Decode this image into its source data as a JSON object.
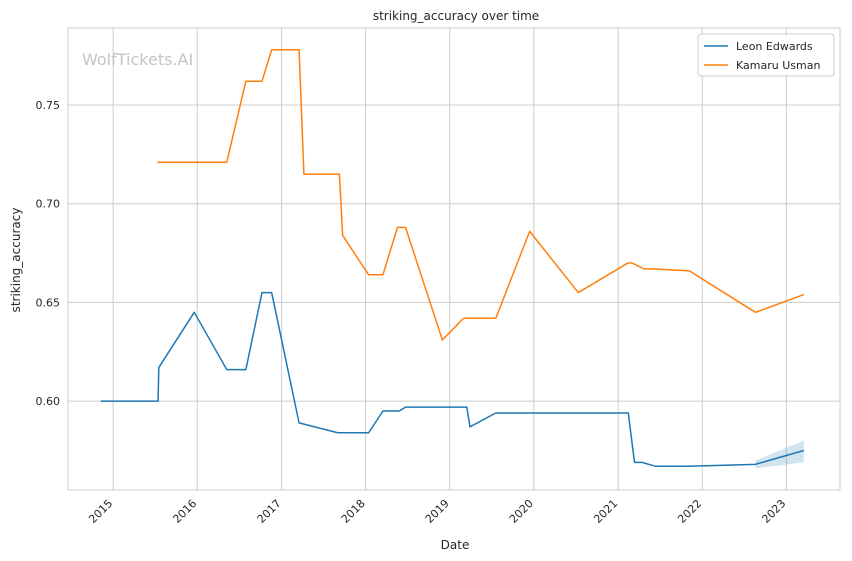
{
  "chart_data": {
    "type": "line",
    "title": "striking_accuracy over time",
    "xlabel": "Date",
    "ylabel": "striking_accuracy",
    "watermark": "WolfTickets.AI",
    "xlim": [
      "2014-06-19",
      "2023-08-22"
    ],
    "ylim": [
      0.555,
      0.789
    ],
    "x_ticks": [
      "2015-01-01",
      "2016-01-01",
      "2017-01-01",
      "2018-01-01",
      "2019-01-01",
      "2020-01-01",
      "2021-01-01",
      "2022-01-01",
      "2023-01-01"
    ],
    "x_tick_labels": [
      "2015",
      "2016",
      "2017",
      "2018",
      "2019",
      "2020",
      "2021",
      "2022",
      "2023"
    ],
    "y_ticks": [
      0.6,
      0.65,
      0.7,
      0.75
    ],
    "y_tick_labels": [
      "0.60",
      "0.65",
      "0.70",
      "0.75"
    ],
    "grid": true,
    "legend_position": "top-right",
    "series": [
      {
        "name": "Leon Edwards",
        "color": "#1f77b4",
        "points": [
          [
            "2014-11-08",
            0.6
          ],
          [
            "2015-07-15",
            0.6
          ],
          [
            "2015-07-18",
            0.617
          ],
          [
            "2015-12-19",
            0.645
          ],
          [
            "2016-05-08",
            0.616
          ],
          [
            "2016-07-30",
            0.616
          ],
          [
            "2016-10-08",
            0.655
          ],
          [
            "2016-11-19",
            0.655
          ],
          [
            "2017-03-18",
            0.589
          ],
          [
            "2017-09-02",
            0.584
          ],
          [
            "2018-01-14",
            0.584
          ],
          [
            "2018-03-17",
            0.595
          ],
          [
            "2018-05-27",
            0.595
          ],
          [
            "2018-06-23",
            0.597
          ],
          [
            "2019-03-16",
            0.597
          ],
          [
            "2019-03-30",
            0.587
          ],
          [
            "2019-07-20",
            0.594
          ],
          [
            "2021-02-14",
            0.594
          ],
          [
            "2021-03-13",
            0.569
          ],
          [
            "2021-04-15",
            0.569
          ],
          [
            "2021-06-12",
            0.567
          ],
          [
            "2021-11-01",
            0.567
          ],
          [
            "2022-08-20",
            0.568
          ],
          [
            "2023-03-18",
            0.575
          ]
        ],
        "band": [
          [
            "2022-08-20",
            0.566,
            0.57
          ],
          [
            "2023-03-18",
            0.569,
            0.58
          ]
        ]
      },
      {
        "name": "Kamaru Usman",
        "color": "#ff7f0e",
        "points": [
          [
            "2015-07-12",
            0.721
          ],
          [
            "2016-05-08",
            0.721
          ],
          [
            "2016-07-30",
            0.762
          ],
          [
            "2016-10-08",
            0.762
          ],
          [
            "2016-11-19",
            0.778
          ],
          [
            "2017-03-18",
            0.778
          ],
          [
            "2017-04-08",
            0.715
          ],
          [
            "2017-09-09",
            0.715
          ],
          [
            "2017-09-23",
            0.684
          ],
          [
            "2018-01-14",
            0.664
          ],
          [
            "2018-03-17",
            0.664
          ],
          [
            "2018-05-19",
            0.688
          ],
          [
            "2018-06-23",
            0.688
          ],
          [
            "2018-11-30",
            0.631
          ],
          [
            "2019-03-02",
            0.642
          ],
          [
            "2019-07-20",
            0.642
          ],
          [
            "2019-12-14",
            0.686
          ],
          [
            "2020-07-12",
            0.655
          ],
          [
            "2021-02-13",
            0.67
          ],
          [
            "2021-03-01",
            0.67
          ],
          [
            "2021-04-24",
            0.667
          ],
          [
            "2021-06-01",
            0.667
          ],
          [
            "2021-11-06",
            0.666
          ],
          [
            "2022-08-20",
            0.645
          ],
          [
            "2023-03-18",
            0.654
          ]
        ]
      }
    ]
  }
}
